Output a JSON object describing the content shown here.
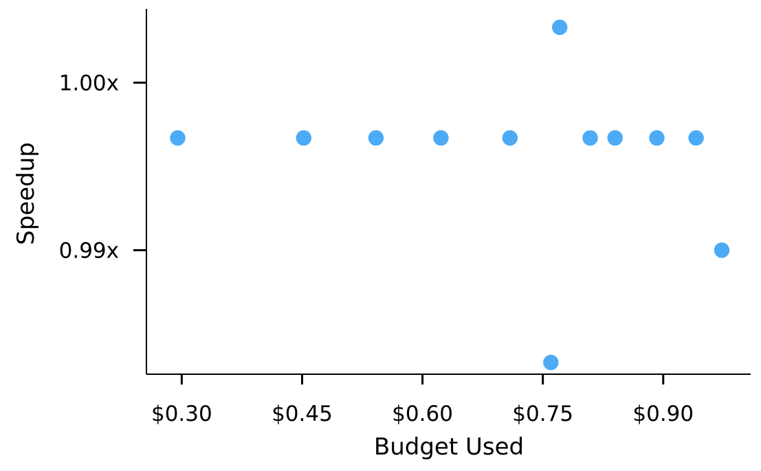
{
  "chart_data": {
    "type": "scatter",
    "title": "",
    "xlabel": "Budget Used",
    "ylabel": "Speedup",
    "x_ticks": [
      {
        "value": 0.3,
        "label": "$0.30"
      },
      {
        "value": 0.45,
        "label": "$0.45"
      },
      {
        "value": 0.6,
        "label": "$0.60"
      },
      {
        "value": 0.75,
        "label": "$0.75"
      },
      {
        "value": 0.9,
        "label": "$0.90"
      }
    ],
    "y_ticks": [
      {
        "value": 0.99,
        "label": "0.99x"
      },
      {
        "value": 1.0,
        "label": "1.00x"
      }
    ],
    "xlim": [
      0.256,
      1.009
    ],
    "ylim": [
      0.9826,
      1.0044
    ],
    "grid": false,
    "legend": "none",
    "point_color": "#4DABF5",
    "points": [
      {
        "x": 0.295,
        "y": 0.9967
      },
      {
        "x": 0.452,
        "y": 0.9967
      },
      {
        "x": 0.542,
        "y": 0.9967
      },
      {
        "x": 0.623,
        "y": 0.9967
      },
      {
        "x": 0.709,
        "y": 0.9967
      },
      {
        "x": 0.771,
        "y": 1.0033
      },
      {
        "x": 0.76,
        "y": 0.9833
      },
      {
        "x": 0.809,
        "y": 0.9967
      },
      {
        "x": 0.84,
        "y": 0.9967
      },
      {
        "x": 0.892,
        "y": 0.9967
      },
      {
        "x": 0.941,
        "y": 0.9967
      },
      {
        "x": 0.973,
        "y": 0.99
      }
    ]
  }
}
